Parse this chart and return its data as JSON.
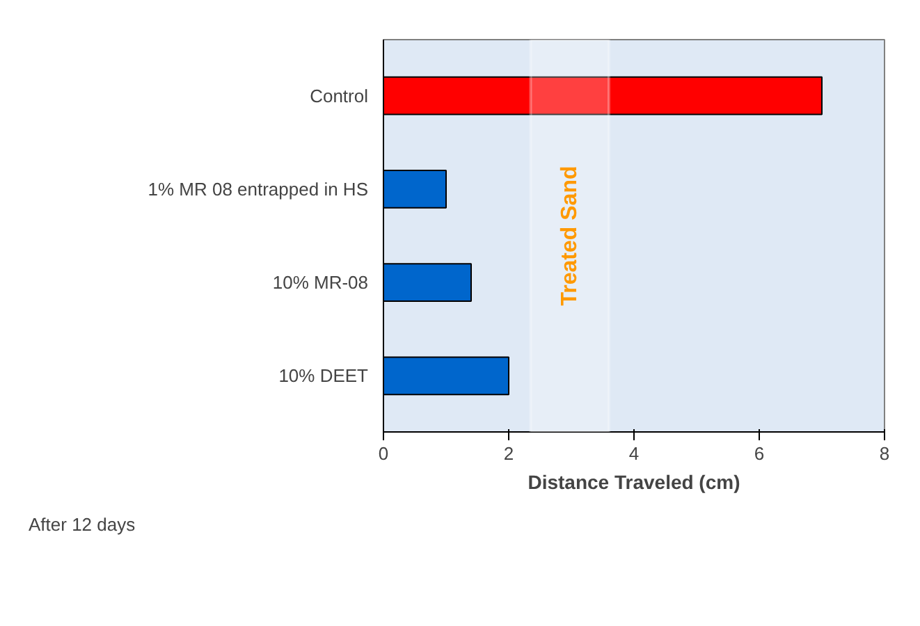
{
  "chart_data": {
    "type": "bar",
    "orientation": "horizontal",
    "categories": [
      "Control",
      "1% MR 08 entrapped in HS",
      "10% MR-08",
      "10% DEET"
    ],
    "values": [
      7,
      1,
      1.4,
      2
    ],
    "colors": [
      "#ff0000",
      "#0066cc",
      "#0066cc",
      "#0066cc"
    ],
    "xlim": [
      0,
      8
    ],
    "xticks": [
      0,
      2,
      4,
      6,
      8
    ],
    "xlabel": "Distance Traveled (cm)",
    "grid": false,
    "bands": [
      {
        "axis": "x",
        "from": 2.35,
        "to": 3.6,
        "label": "Treated Sand",
        "color": "#ffffff"
      }
    ],
    "annotations": [
      "After 12 days"
    ]
  }
}
